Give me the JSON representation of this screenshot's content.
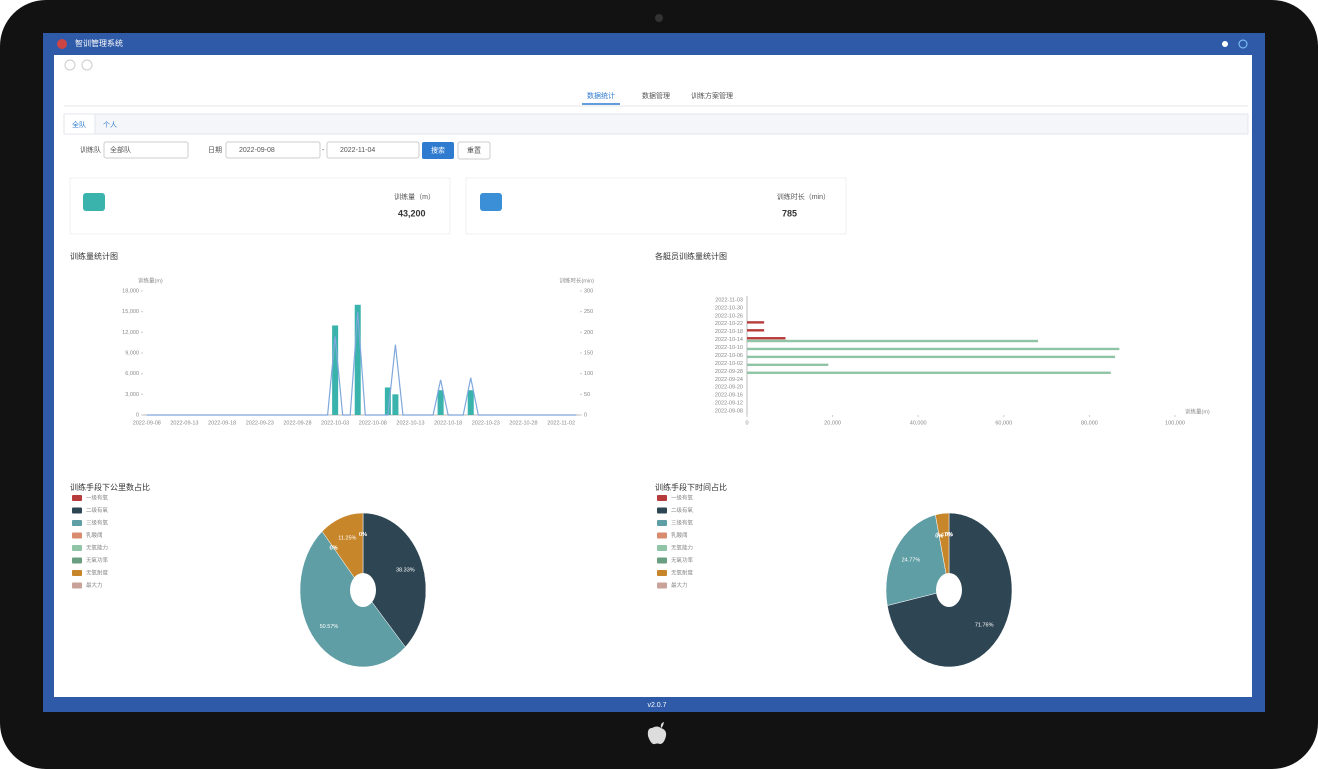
{
  "app_title": "智训管理系统",
  "version": "v2.0.7",
  "nav_tabs": [
    "数据统计",
    "数据管理",
    "训练方案管理"
  ],
  "sub_tabs": [
    "全队",
    "个人"
  ],
  "filters": {
    "team_label": "训练队",
    "team_value": "全部队",
    "date_label": "日期",
    "date_start": "2022-09-08",
    "date_sep": "-",
    "date_end": "2022-11-04",
    "search": "搜索",
    "reset": "重置"
  },
  "cards": [
    {
      "label": "训练量（m）",
      "value": "43,200"
    },
    {
      "label": "训练时长（min）",
      "value": "785"
    }
  ],
  "chart_data": [
    {
      "type": "bar_line",
      "title": "训练量统计图",
      "y_label": "训练量(m)",
      "y2_label": "训练时长(min)",
      "grid": false,
      "categories": [
        "2022-09-08",
        null,
        null,
        null,
        null,
        "2022-09-13",
        null,
        null,
        null,
        null,
        "2022-09-18",
        null,
        null,
        null,
        null,
        "2022-09-23",
        null,
        null,
        null,
        null,
        "2022-09-28",
        null,
        null,
        null,
        null,
        "2022-10-03",
        null,
        null,
        null,
        null,
        "2022-10-08",
        null,
        null,
        null,
        null,
        "2022-10-13",
        null,
        null,
        null,
        null,
        "2022-10-18",
        null,
        null,
        null,
        null,
        "2022-10-23",
        null,
        null,
        null,
        null,
        "2022-10-28",
        null,
        null,
        null,
        null,
        "2022-11-02",
        null,
        null
      ],
      "series": [
        {
          "color": "#3bb3ad",
          "values": [
            0,
            0,
            0,
            0,
            0,
            0,
            0,
            0,
            0,
            0,
            0,
            0,
            0,
            0,
            0,
            0,
            0,
            0,
            0,
            0,
            0,
            0,
            0,
            0,
            0,
            13000,
            0,
            0,
            16000,
            0,
            0,
            0,
            4000,
            3000,
            0,
            0,
            0,
            0,
            0,
            3600,
            0,
            0,
            0,
            3600,
            0,
            0,
            0,
            0,
            0,
            0,
            0,
            0,
            0,
            0,
            0,
            0,
            0,
            0
          ]
        },
        {
          "color": "#7fa8dc",
          "type": "line",
          "axis": "y2",
          "values": [
            0,
            0,
            0,
            0,
            0,
            0,
            0,
            0,
            0,
            0,
            0,
            0,
            0,
            0,
            0,
            0,
            0,
            0,
            0,
            0,
            0,
            0,
            0,
            0,
            0,
            190,
            0,
            0,
            250,
            0,
            0,
            0,
            0,
            170,
            0,
            0,
            0,
            0,
            0,
            85,
            0,
            0,
            0,
            90,
            0,
            0,
            0,
            0,
            0,
            0,
            0,
            0,
            0,
            0,
            0,
            0,
            0,
            0
          ]
        }
      ],
      "ylim": [
        0,
        18000
      ],
      "yticks": [
        0,
        {
          "value": 3000,
          "label": "3,000"
        },
        {
          "value": 6000,
          "label": "6,000"
        },
        {
          "value": 9000,
          "label": "9,000"
        },
        {
          "value": 12000,
          "label": "12,000"
        },
        {
          "value": 15000,
          "label": "15,000"
        },
        {
          "value": 18000,
          "label": "18,000"
        }
      ],
      "y2lim": [
        0,
        300
      ],
      "y2ticks": [
        0,
        50,
        100,
        150,
        200,
        250,
        300
      ]
    },
    {
      "type": "hbar",
      "title": "各艇员训练量统计图",
      "x_label": "训练量(m)",
      "categories": [
        "2022-09-08",
        "2022-09-12",
        "2022-09-16",
        "2022-09-20",
        "2022-09-24",
        "2022-09-28",
        "2022-10-02",
        "2022-10-06",
        "2022-10-10",
        "2022-10-14",
        "2022-10-18",
        "2022-10-22",
        "2022-10-26",
        "2022-10-30",
        "2022-11-03"
      ],
      "series": [
        {
          "color": "#b83b3b",
          "values": [
            0,
            0,
            0,
            0,
            0,
            0,
            0,
            0,
            0,
            9000,
            4000,
            4000,
            0,
            0,
            0
          ]
        },
        {
          "color": "#8fc4a6",
          "values": [
            0,
            0,
            0,
            0,
            0,
            85000,
            19000,
            86000,
            87000,
            68000,
            0,
            0,
            0,
            0,
            0
          ]
        }
      ],
      "xlim": [
        0,
        100000
      ],
      "xticks": [
        0,
        {
          "value": 20000,
          "label": "20,000"
        },
        {
          "value": 40000,
          "label": "40,000"
        },
        {
          "value": 60000,
          "label": "60,000"
        },
        {
          "value": 80000,
          "label": "80,000"
        },
        {
          "value": 100000,
          "label": "100,000"
        }
      ]
    },
    {
      "type": "pie",
      "title": "训练手段下公里数占比",
      "categories": [
        "一级有氧",
        "二级有氧",
        "三级有氧",
        "乳酸阈",
        "无氧能力",
        "无氧功率",
        "无氧耐度",
        "最大力"
      ],
      "colors": [
        "#b83b3b",
        "#2e4553",
        "#5f9ea5",
        "#d98b6e",
        "#8fc4a6",
        "#6a9e80",
        "#c8862a",
        "#c9a39a"
      ],
      "values": [
        0,
        38.33,
        50.57,
        0,
        0,
        0,
        11.25,
        0
      ],
      "value_labels": [
        "0%",
        "38.33%",
        "50.57%",
        "0%",
        "0%",
        "0%",
        "11.25%",
        "0%"
      ]
    },
    {
      "type": "pie",
      "title": "训练手段下时间占比",
      "categories": [
        "一级有氧",
        "二级有氧",
        "三级有氧",
        "乳酸阈",
        "无氧能力",
        "无氧功率",
        "无氧耐度",
        "最大力"
      ],
      "colors": [
        "#b83b3b",
        "#2e4553",
        "#5f9ea5",
        "#d98b6e",
        "#8fc4a6",
        "#6a9e80",
        "#c8862a",
        "#c9a39a"
      ],
      "values": [
        0,
        71.76,
        24.77,
        0,
        0,
        0,
        3.47,
        0
      ],
      "value_labels": [
        "0%",
        "71.76%",
        "24.77%",
        "0%",
        "0%",
        "0%",
        "3.47%",
        "0%"
      ]
    }
  ]
}
